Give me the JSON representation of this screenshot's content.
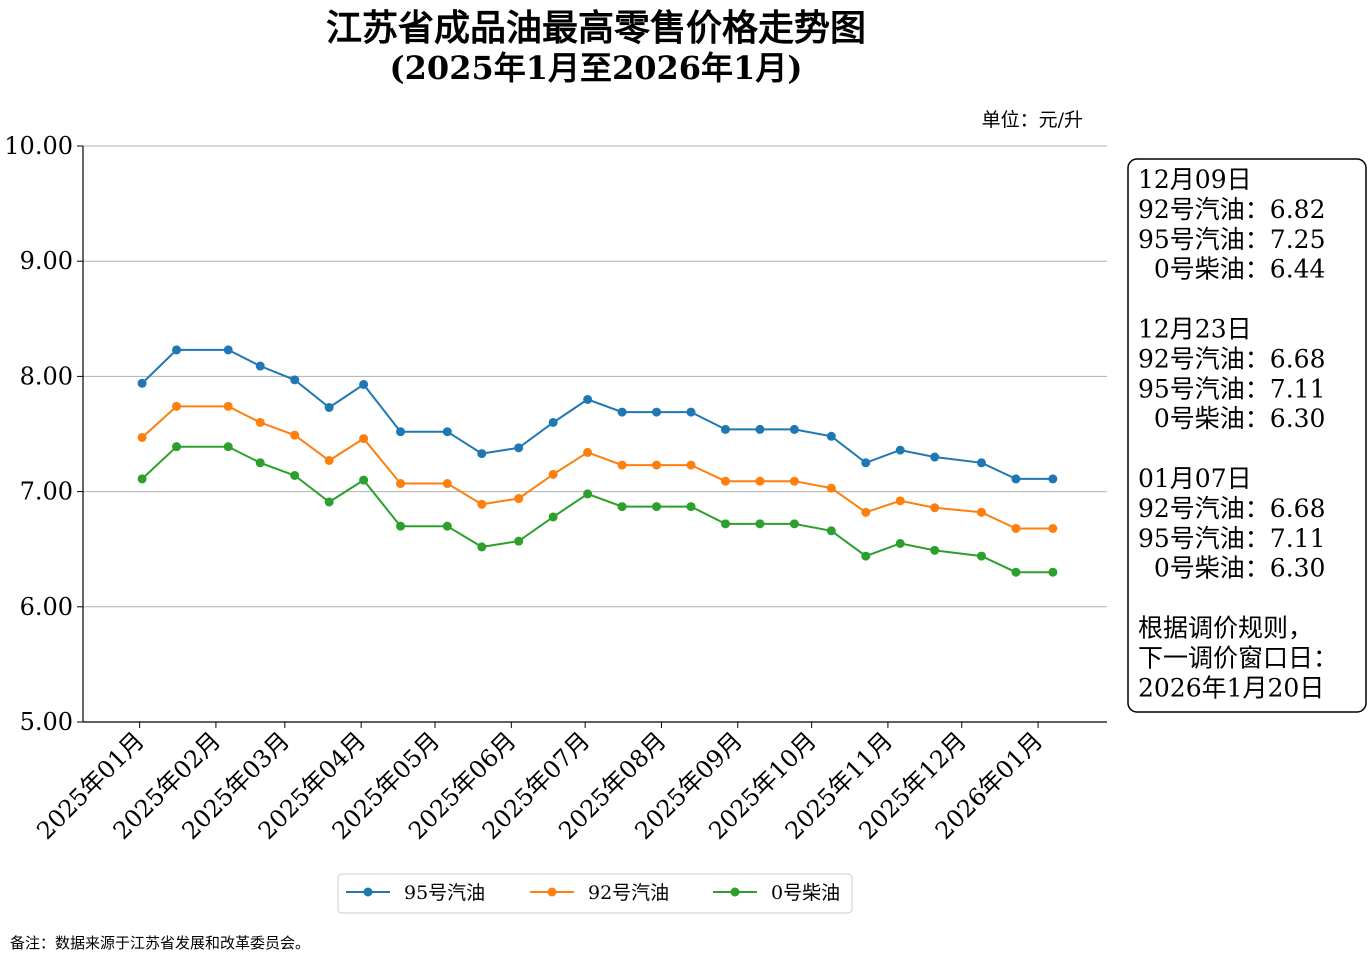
{
  "title": {
    "line1": "江苏省成品油最高零售价格走势图",
    "line2": "(2025年1月至2026年1月)"
  },
  "unit_label": "单位：元/升",
  "footnote": "备注：数据来源于江苏省发展和改革委员会。",
  "chart_data": {
    "type": "line",
    "title": "江苏省成品油最高零售价格走势图 (2025年1月至2026年1月)",
    "ylabel": "单位：元/升",
    "ylim": [
      5.0,
      10.0
    ],
    "yticks": [
      "5.00",
      "6.00",
      "7.00",
      "8.00",
      "9.00",
      "10.00"
    ],
    "xticks": [
      "2025年01月",
      "2025年02月",
      "2025年03月",
      "2025年04月",
      "2025年05月",
      "2025年06月",
      "2025年07月",
      "2025年08月",
      "2025年09月",
      "2025年10月",
      "2025年11月",
      "2025年12月",
      "2026年01月"
    ],
    "grid": "horizontal",
    "legend_position": "bottom",
    "x": [
      "2025-01-02",
      "2025-01-16",
      "2025-02-06",
      "2025-02-19",
      "2025-03-05",
      "2025-03-19",
      "2025-04-02",
      "2025-04-17",
      "2025-05-06",
      "2025-05-20",
      "2025-06-04",
      "2025-06-18",
      "2025-07-02",
      "2025-07-16",
      "2025-07-30",
      "2025-08-13",
      "2025-08-27",
      "2025-09-10",
      "2025-09-24",
      "2025-10-09",
      "2025-10-23",
      "2025-11-06",
      "2025-11-20",
      "2025-12-09",
      "2025-12-23",
      "2026-01-07"
    ],
    "series": [
      {
        "name": "95号汽油",
        "color": "#1f77b4",
        "values": [
          7.94,
          8.23,
          8.23,
          8.09,
          7.97,
          7.73,
          7.93,
          7.52,
          7.52,
          7.33,
          7.38,
          7.6,
          7.8,
          7.69,
          7.69,
          7.69,
          7.54,
          7.54,
          7.54,
          7.48,
          7.25,
          7.36,
          7.3,
          7.25,
          7.11,
          7.11
        ]
      },
      {
        "name": "92号汽油",
        "color": "#ff7f0e",
        "values": [
          7.47,
          7.74,
          7.74,
          7.6,
          7.49,
          7.27,
          7.46,
          7.07,
          7.07,
          6.89,
          6.94,
          7.15,
          7.34,
          7.23,
          7.23,
          7.23,
          7.09,
          7.09,
          7.09,
          7.03,
          6.82,
          6.92,
          6.86,
          6.82,
          6.68,
          6.68
        ]
      },
      {
        "name": "0号柴油",
        "color": "#2ca02c",
        "values": [
          7.11,
          7.39,
          7.39,
          7.25,
          7.14,
          6.91,
          7.1,
          6.7,
          6.7,
          6.52,
          6.57,
          6.78,
          6.98,
          6.87,
          6.87,
          6.87,
          6.72,
          6.72,
          6.72,
          6.66,
          6.44,
          6.55,
          6.49,
          6.44,
          6.3,
          6.3
        ]
      }
    ]
  },
  "info_box": {
    "color": "#000000",
    "lines": [
      "12月09日",
      "92号汽油：6.82",
      "95号汽油：7.25",
      "  0号柴油：6.44",
      "",
      "12月23日",
      "92号汽油：6.68",
      "95号汽油：7.11",
      "  0号柴油：6.30",
      "",
      "01月07日",
      "92号汽油：6.68",
      "95号汽油：7.11",
      "  0号柴油：6.30",
      "",
      "根据调价规则，",
      "下一调价窗口日：",
      "2026年1月20日"
    ]
  }
}
